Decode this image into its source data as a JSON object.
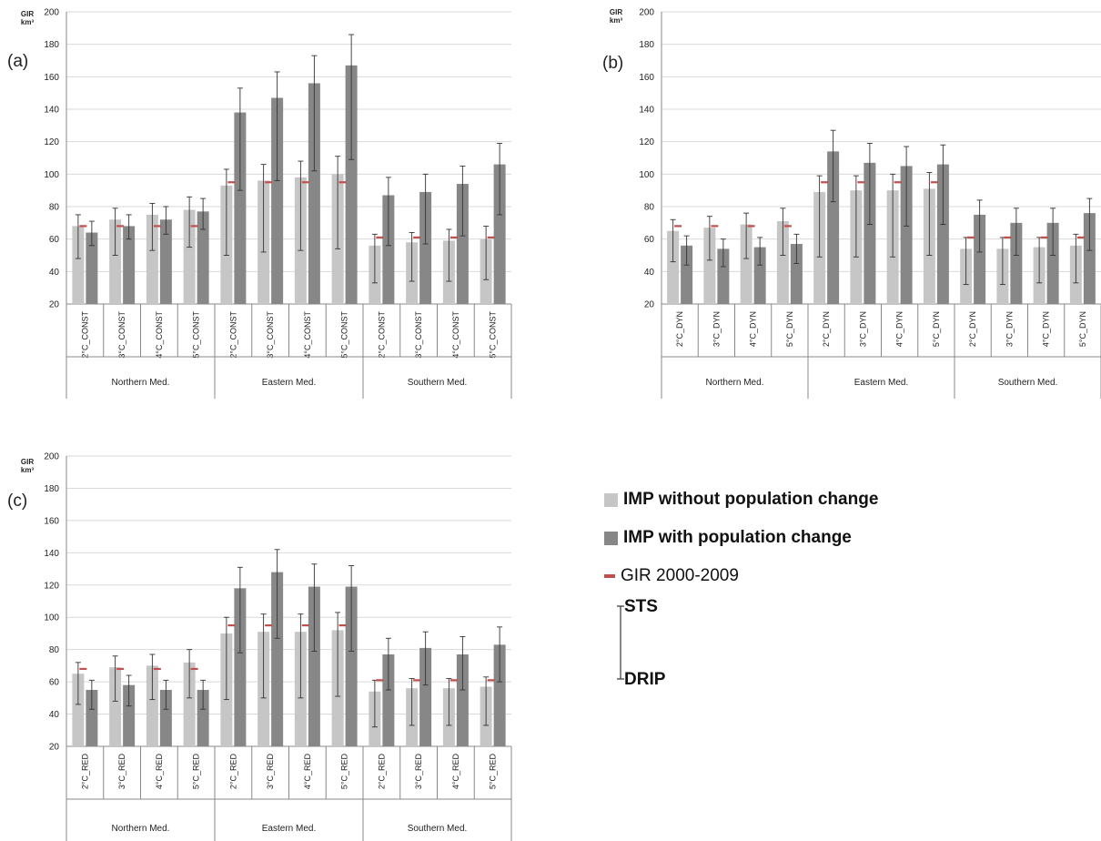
{
  "colors": {
    "without_pop": "#c6c6c6",
    "with_pop": "#878787",
    "baseline": "#c0504d",
    "grid": "#d9d9d9",
    "axis": "#888888",
    "errorbar": "#333333",
    "text": "#222222"
  },
  "legend": {
    "without_pop": "IMP without population change",
    "with_pop": "IMP with population change",
    "baseline": "GIR 2000-2009",
    "sts": "STS",
    "drip": "DRIP"
  },
  "chart_data": [
    {
      "panel_label": "(a)",
      "type": "bar",
      "ylabel": "GIR km³",
      "ylim": [
        20,
        200
      ],
      "yticks": [
        20,
        40,
        60,
        80,
        100,
        120,
        140,
        160,
        180,
        200
      ],
      "grid": true,
      "categories": [
        "2°C_CONST",
        "3°C_CONST",
        "4°C_CONST",
        "5°C_CONST",
        "2°C_CONST",
        "3°C_CONST",
        "4°C_CONST",
        "5°C_CONST",
        "2°C_CONST",
        "3°C_CONST",
        "4°C_CONST",
        "5°C_CONST"
      ],
      "regions": [
        {
          "label": "Northern Med.",
          "count": 4
        },
        {
          "label": "Eastern Med.",
          "count": 4
        },
        {
          "label": "Southern Med.",
          "count": 4
        }
      ],
      "series": [
        {
          "name": "IMP without population change",
          "values": [
            68,
            72,
            75,
            78,
            93,
            96,
            98,
            100,
            56,
            58,
            59,
            60
          ],
          "err_high": [
            75,
            79,
            82,
            86,
            103,
            106,
            108,
            111,
            63,
            64,
            66,
            68
          ],
          "err_low": [
            48,
            50,
            53,
            55,
            50,
            52,
            53,
            54,
            33,
            34,
            34,
            35
          ]
        },
        {
          "name": "IMP with population change",
          "values": [
            64,
            68,
            72,
            77,
            138,
            147,
            156,
            167,
            87,
            89,
            94,
            106
          ],
          "err_high": [
            71,
            75,
            80,
            85,
            153,
            163,
            173,
            186,
            98,
            100,
            105,
            119
          ],
          "err_low": [
            56,
            60,
            63,
            66,
            90,
            96,
            102,
            109,
            56,
            57,
            62,
            75
          ]
        }
      ],
      "baseline": {
        "name": "GIR 2000-2009",
        "values": [
          68,
          68,
          68,
          68,
          95,
          95,
          95,
          95,
          61,
          61,
          61,
          61
        ]
      }
    },
    {
      "panel_label": "(b)",
      "type": "bar",
      "ylabel": "GIR km³",
      "ylim": [
        20,
        200
      ],
      "yticks": [
        20,
        40,
        60,
        80,
        100,
        120,
        140,
        160,
        180,
        200
      ],
      "grid": true,
      "categories": [
        "2°C_DYN",
        "3°C_DYN",
        "4°C_DYN",
        "5°C_DYN",
        "2°C_DYN",
        "3°C_DYN",
        "4°C_DYN",
        "5°C_DYN",
        "2°C_DYN",
        "3°C_DYN",
        "4°C_DYN",
        "5°C_DYN"
      ],
      "regions": [
        {
          "label": "Northern Med.",
          "count": 4
        },
        {
          "label": "Eastern Med.",
          "count": 4
        },
        {
          "label": "Southern Med.",
          "count": 4
        }
      ],
      "series": [
        {
          "name": "IMP without population change",
          "values": [
            65,
            67,
            69,
            71,
            89,
            90,
            90,
            91,
            54,
            54,
            55,
            56
          ],
          "err_high": [
            72,
            74,
            76,
            79,
            99,
            99,
            100,
            101,
            61,
            61,
            61,
            63
          ],
          "err_low": [
            46,
            47,
            48,
            50,
            49,
            49,
            49,
            50,
            32,
            32,
            33,
            33
          ]
        },
        {
          "name": "IMP with population change",
          "values": [
            56,
            54,
            55,
            57,
            114,
            107,
            105,
            106,
            75,
            70,
            70,
            76
          ],
          "err_high": [
            62,
            60,
            61,
            63,
            127,
            119,
            117,
            118,
            84,
            79,
            79,
            85
          ],
          "err_low": [
            44,
            43,
            44,
            45,
            83,
            69,
            68,
            69,
            52,
            50,
            50,
            53
          ]
        }
      ],
      "baseline": {
        "name": "GIR 2000-2009",
        "values": [
          68,
          68,
          68,
          68,
          95,
          95,
          95,
          95,
          61,
          61,
          61,
          61
        ]
      }
    },
    {
      "panel_label": "(c)",
      "type": "bar",
      "ylabel": "GIR km³",
      "ylim": [
        20,
        200
      ],
      "yticks": [
        20,
        40,
        60,
        80,
        100,
        120,
        140,
        160,
        180,
        200
      ],
      "grid": true,
      "categories": [
        "2°C_RED",
        "3°C_RED",
        "4°C_RED",
        "5°C_RED",
        "2°C_RED",
        "3°C_RED",
        "4°C_RED",
        "5°C_RED",
        "2°C_RED",
        "3°C_RED",
        "4°C_RED",
        "5°C_RED"
      ],
      "regions": [
        {
          "label": "Northern Med.",
          "count": 4
        },
        {
          "label": "Eastern Med.",
          "count": 4
        },
        {
          "label": "Southern Med.",
          "count": 4
        }
      ],
      "series": [
        {
          "name": "IMP without population change",
          "values": [
            65,
            69,
            70,
            72,
            90,
            91,
            91,
            92,
            54,
            56,
            56,
            57
          ],
          "err_high": [
            72,
            76,
            77,
            80,
            100,
            102,
            102,
            103,
            61,
            62,
            62,
            63
          ],
          "err_low": [
            46,
            48,
            49,
            50,
            49,
            50,
            50,
            51,
            32,
            33,
            33,
            33
          ]
        },
        {
          "name": "IMP with population change",
          "values": [
            55,
            58,
            55,
            55,
            118,
            128,
            119,
            119,
            77,
            81,
            77,
            83
          ],
          "err_high": [
            61,
            64,
            61,
            61,
            131,
            142,
            133,
            132,
            87,
            91,
            88,
            94
          ],
          "err_low": [
            43,
            45,
            43,
            43,
            78,
            87,
            79,
            79,
            55,
            58,
            55,
            60
          ]
        }
      ],
      "baseline": {
        "name": "GIR 2000-2009",
        "values": [
          68,
          68,
          68,
          68,
          95,
          95,
          95,
          95,
          61,
          61,
          61,
          61
        ]
      }
    }
  ]
}
